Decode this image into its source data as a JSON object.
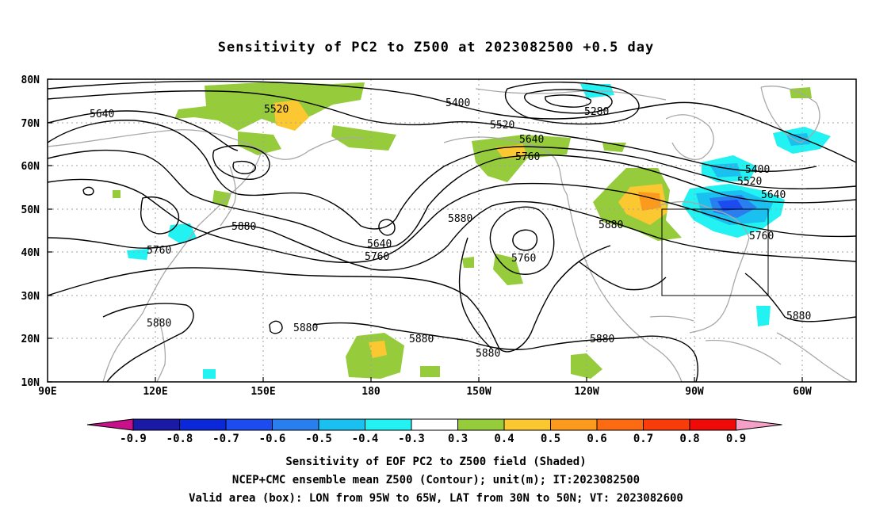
{
  "title": "Sensitivity of PC2 to Z500 at 2023082500 +0.5 day",
  "captions": {
    "line1": "Sensitivity of EOF PC2 to Z500 field (Shaded)",
    "line2": "NCEP+CMC ensemble mean Z500 (Contour); unit(m); IT:2023082500",
    "line3": "Valid area (box): LON from 95W to 65W, LAT from 30N to 50N; VT: 2023082600"
  },
  "axes": {
    "lat_labels": [
      "80N",
      "70N",
      "60N",
      "50N",
      "40N",
      "30N",
      "20N",
      "10N"
    ],
    "lon_labels": [
      "90E",
      "120E",
      "150E",
      "180",
      "150W",
      "120W",
      "90W",
      "60W"
    ]
  },
  "colorbar": {
    "labels": [
      "-0.9",
      "-0.8",
      "-0.7",
      "-0.6",
      "-0.5",
      "-0.4",
      "-0.3",
      "0.3",
      "0.4",
      "0.5",
      "0.6",
      "0.7",
      "0.8",
      "0.9"
    ],
    "colors": [
      "#c8108a",
      "#1a1aa6",
      "#0a28d8",
      "#1c4cf0",
      "#2a7ff0",
      "#1ac0f0",
      "#22f2f2",
      "#ffffff",
      "#96cc3c",
      "#fcc832",
      "#fc9a1e",
      "#fc6a12",
      "#fa3c0a",
      "#f00a0a",
      "#f6a0c8"
    ]
  },
  "contour_labels": {
    "c5640a": "5640",
    "c5520a": "5520",
    "c5400a": "5400",
    "c5280": "5280",
    "c5520b": "5520",
    "c5640b": "5640",
    "c5760a": "5760",
    "c5400b": "5400",
    "c5520c": "5520",
    "c5640c": "5640",
    "c5760b": "5760",
    "c5880a": "5880",
    "c5760c": "5760",
    "c5880b": "5880",
    "c5640d": "5640",
    "c5760d": "5760",
    "c5880c": "5880",
    "c5760e": "5760",
    "c5880d": "5880",
    "c5880e": "5880",
    "c5880f": "5880",
    "c5880g": "5880",
    "c5880h": "5880",
    "c5880i": "5880"
  },
  "valid_box": {
    "lon_range": "95W-65W",
    "lat_range": "30N-50N"
  }
}
